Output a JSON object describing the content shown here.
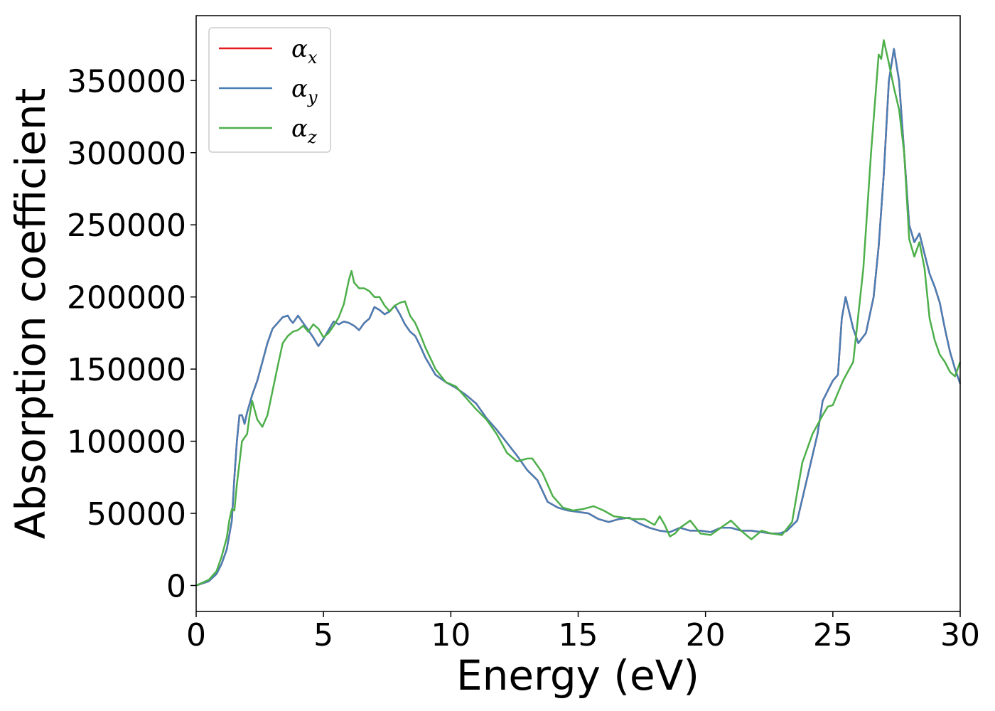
{
  "chart_data": {
    "type": "line",
    "title": "",
    "xlabel": "Energy (eV)",
    "ylabel": "Absorption coefficient",
    "xlim": [
      0,
      30
    ],
    "ylim": [
      -18000,
      395000
    ],
    "xticks": [
      0,
      5,
      10,
      15,
      20,
      25,
      30
    ],
    "yticks": [
      0,
      50000,
      100000,
      150000,
      200000,
      250000,
      300000,
      350000
    ],
    "grid": false,
    "legend_position": "top-left",
    "series": [
      {
        "name": "αx",
        "base": "α",
        "sub": "x",
        "color": "#e41a1c",
        "x": [
          0,
          0.5,
          0.8,
          1.0,
          1.2,
          1.4,
          1.5,
          1.6,
          1.7,
          1.8,
          1.9,
          2.0,
          2.2,
          2.4,
          2.6,
          2.8,
          3.0,
          3.2,
          3.4,
          3.6,
          3.7,
          3.8,
          4.0,
          4.2,
          4.4,
          4.6,
          4.8,
          5.0,
          5.2,
          5.4,
          5.6,
          5.8,
          6.0,
          6.2,
          6.4,
          6.6,
          6.8,
          7.0,
          7.2,
          7.4,
          7.6,
          7.8,
          8.0,
          8.2,
          8.4,
          8.6,
          8.8,
          9.0,
          9.4,
          9.8,
          10.2,
          10.6,
          11.0,
          11.4,
          11.8,
          12.2,
          12.6,
          13.0,
          13.4,
          13.8,
          14.2,
          14.6,
          15.0,
          15.4,
          15.8,
          16.2,
          16.6,
          17.0,
          17.4,
          17.8,
          18.2,
          18.6,
          19.0,
          19.4,
          19.8,
          20.2,
          20.6,
          21.0,
          21.4,
          21.8,
          22.2,
          22.6,
          22.9,
          23.2,
          23.6,
          24.0,
          24.4,
          24.6,
          24.8,
          25.0,
          25.2,
          25.35,
          25.5,
          25.8,
          26.0,
          26.3,
          26.6,
          26.8,
          27.0,
          27.2,
          27.4,
          27.6,
          27.8,
          28.0,
          28.2,
          28.4,
          28.6,
          28.8,
          29.0,
          29.2,
          29.4,
          29.6,
          29.8,
          30.0
        ],
        "y": [
          0,
          3000,
          8000,
          15000,
          25000,
          45000,
          75000,
          100000,
          118000,
          118000,
          112000,
          120000,
          132000,
          142000,
          155000,
          168000,
          178000,
          182000,
          186000,
          187000,
          184000,
          182000,
          187000,
          182000,
          177000,
          172000,
          166000,
          171000,
          177000,
          183000,
          181000,
          183000,
          182000,
          180000,
          177000,
          182000,
          185000,
          193000,
          191000,
          188000,
          190000,
          194000,
          188000,
          181000,
          176000,
          173000,
          166000,
          158000,
          146000,
          141000,
          137000,
          132000,
          126000,
          116000,
          108000,
          99000,
          90000,
          80000,
          73000,
          58000,
          54000,
          52000,
          51000,
          50000,
          46000,
          44000,
          46000,
          47000,
          43000,
          40000,
          38000,
          37000,
          40000,
          38000,
          38000,
          37000,
          40000,
          40000,
          38000,
          38000,
          37000,
          36000,
          36000,
          38000,
          45000,
          75000,
          105000,
          128000,
          135000,
          142000,
          146000,
          185000,
          200000,
          178000,
          168000,
          175000,
          200000,
          235000,
          285000,
          350000,
          372000,
          350000,
          300000,
          250000,
          238000,
          244000,
          230000,
          216000,
          207000,
          196000,
          178000,
          162000,
          150000,
          140000
        ]
      },
      {
        "name": "αy",
        "base": "α",
        "sub": "y",
        "color": "#4a7fb5",
        "x": [
          0,
          0.5,
          0.8,
          1.0,
          1.2,
          1.4,
          1.5,
          1.6,
          1.7,
          1.8,
          1.9,
          2.0,
          2.2,
          2.4,
          2.6,
          2.8,
          3.0,
          3.2,
          3.4,
          3.6,
          3.7,
          3.8,
          4.0,
          4.2,
          4.4,
          4.6,
          4.8,
          5.0,
          5.2,
          5.4,
          5.6,
          5.8,
          6.0,
          6.2,
          6.4,
          6.6,
          6.8,
          7.0,
          7.2,
          7.4,
          7.6,
          7.8,
          8.0,
          8.2,
          8.4,
          8.6,
          8.8,
          9.0,
          9.4,
          9.8,
          10.2,
          10.6,
          11.0,
          11.4,
          11.8,
          12.2,
          12.6,
          13.0,
          13.4,
          13.8,
          14.2,
          14.6,
          15.0,
          15.4,
          15.8,
          16.2,
          16.6,
          17.0,
          17.4,
          17.8,
          18.2,
          18.6,
          19.0,
          19.4,
          19.8,
          20.2,
          20.6,
          21.0,
          21.4,
          21.8,
          22.2,
          22.6,
          22.9,
          23.2,
          23.6,
          24.0,
          24.4,
          24.6,
          24.8,
          25.0,
          25.2,
          25.35,
          25.5,
          25.8,
          26.0,
          26.3,
          26.6,
          26.8,
          27.0,
          27.2,
          27.4,
          27.6,
          27.8,
          28.0,
          28.2,
          28.4,
          28.6,
          28.8,
          29.0,
          29.2,
          29.4,
          29.6,
          29.8,
          30.0
        ],
        "y": [
          0,
          3000,
          8000,
          15000,
          25000,
          45000,
          75000,
          100000,
          118000,
          118000,
          112000,
          120000,
          132000,
          142000,
          155000,
          168000,
          178000,
          182000,
          186000,
          187000,
          184000,
          182000,
          187000,
          182000,
          177000,
          172000,
          166000,
          171000,
          177000,
          183000,
          181000,
          183000,
          182000,
          180000,
          177000,
          182000,
          185000,
          193000,
          191000,
          188000,
          190000,
          194000,
          188000,
          181000,
          176000,
          173000,
          166000,
          158000,
          146000,
          141000,
          137000,
          132000,
          126000,
          116000,
          108000,
          99000,
          90000,
          80000,
          73000,
          58000,
          54000,
          52000,
          51000,
          50000,
          46000,
          44000,
          46000,
          47000,
          43000,
          40000,
          38000,
          37000,
          40000,
          38000,
          38000,
          37000,
          40000,
          40000,
          38000,
          38000,
          37000,
          36000,
          36000,
          38000,
          45000,
          75000,
          105000,
          128000,
          135000,
          142000,
          146000,
          185000,
          200000,
          178000,
          168000,
          175000,
          200000,
          235000,
          285000,
          350000,
          372000,
          350000,
          300000,
          250000,
          238000,
          244000,
          230000,
          216000,
          207000,
          196000,
          178000,
          162000,
          150000,
          140000
        ]
      },
      {
        "name": "αz",
        "base": "α",
        "sub": "z",
        "color": "#4daf4a",
        "x": [
          0,
          0.5,
          0.8,
          1.0,
          1.2,
          1.3,
          1.4,
          1.5,
          1.6,
          1.8,
          2.0,
          2.1,
          2.2,
          2.4,
          2.6,
          2.8,
          3.0,
          3.2,
          3.4,
          3.6,
          3.8,
          4.0,
          4.2,
          4.4,
          4.6,
          4.8,
          5.0,
          5.2,
          5.4,
          5.6,
          5.8,
          6.0,
          6.1,
          6.2,
          6.4,
          6.6,
          6.8,
          7.0,
          7.2,
          7.4,
          7.6,
          7.8,
          8.0,
          8.2,
          8.4,
          8.6,
          8.8,
          9.0,
          9.4,
          9.8,
          10.2,
          10.6,
          11.0,
          11.4,
          11.8,
          12.2,
          12.6,
          13.0,
          13.2,
          13.6,
          14.0,
          14.4,
          14.8,
          15.2,
          15.6,
          16.0,
          16.4,
          16.8,
          17.2,
          17.6,
          18.0,
          18.2,
          18.4,
          18.6,
          18.8,
          19.0,
          19.4,
          19.8,
          20.2,
          20.6,
          21.0,
          21.4,
          21.8,
          22.2,
          22.6,
          23.0,
          23.4,
          23.8,
          24.2,
          24.6,
          24.8,
          25.0,
          25.4,
          25.8,
          26.2,
          26.5,
          26.8,
          26.9,
          27.0,
          27.2,
          27.4,
          27.6,
          27.8,
          28.0,
          28.2,
          28.4,
          28.6,
          28.8,
          29.0,
          29.2,
          29.4,
          29.6,
          29.8,
          30.0
        ],
        "y": [
          0,
          4000,
          10000,
          20000,
          33000,
          45000,
          53000,
          52000,
          70000,
          100000,
          105000,
          118000,
          128000,
          115000,
          110000,
          118000,
          135000,
          152000,
          168000,
          173000,
          176000,
          177000,
          180000,
          176000,
          181000,
          178000,
          172000,
          175000,
          180000,
          186000,
          195000,
          212000,
          218000,
          210000,
          206000,
          206000,
          204000,
          200000,
          200000,
          194000,
          190000,
          194000,
          196000,
          197000,
          187000,
          182000,
          174000,
          165000,
          150000,
          141000,
          138000,
          130000,
          122000,
          115000,
          105000,
          92000,
          86000,
          88000,
          88000,
          78000,
          62000,
          54000,
          52000,
          53000,
          55000,
          52000,
          48000,
          47000,
          46000,
          46000,
          42000,
          48000,
          42000,
          34000,
          36000,
          40000,
          45000,
          36000,
          35000,
          40000,
          45000,
          38000,
          32000,
          38000,
          36000,
          35000,
          44000,
          85000,
          105000,
          118000,
          124000,
          125000,
          142000,
          155000,
          220000,
          300000,
          368000,
          365000,
          378000,
          362000,
          345000,
          330000,
          300000,
          240000,
          228000,
          238000,
          220000,
          185000,
          170000,
          160000,
          155000,
          148000,
          145000,
          155000
        ]
      }
    ]
  }
}
